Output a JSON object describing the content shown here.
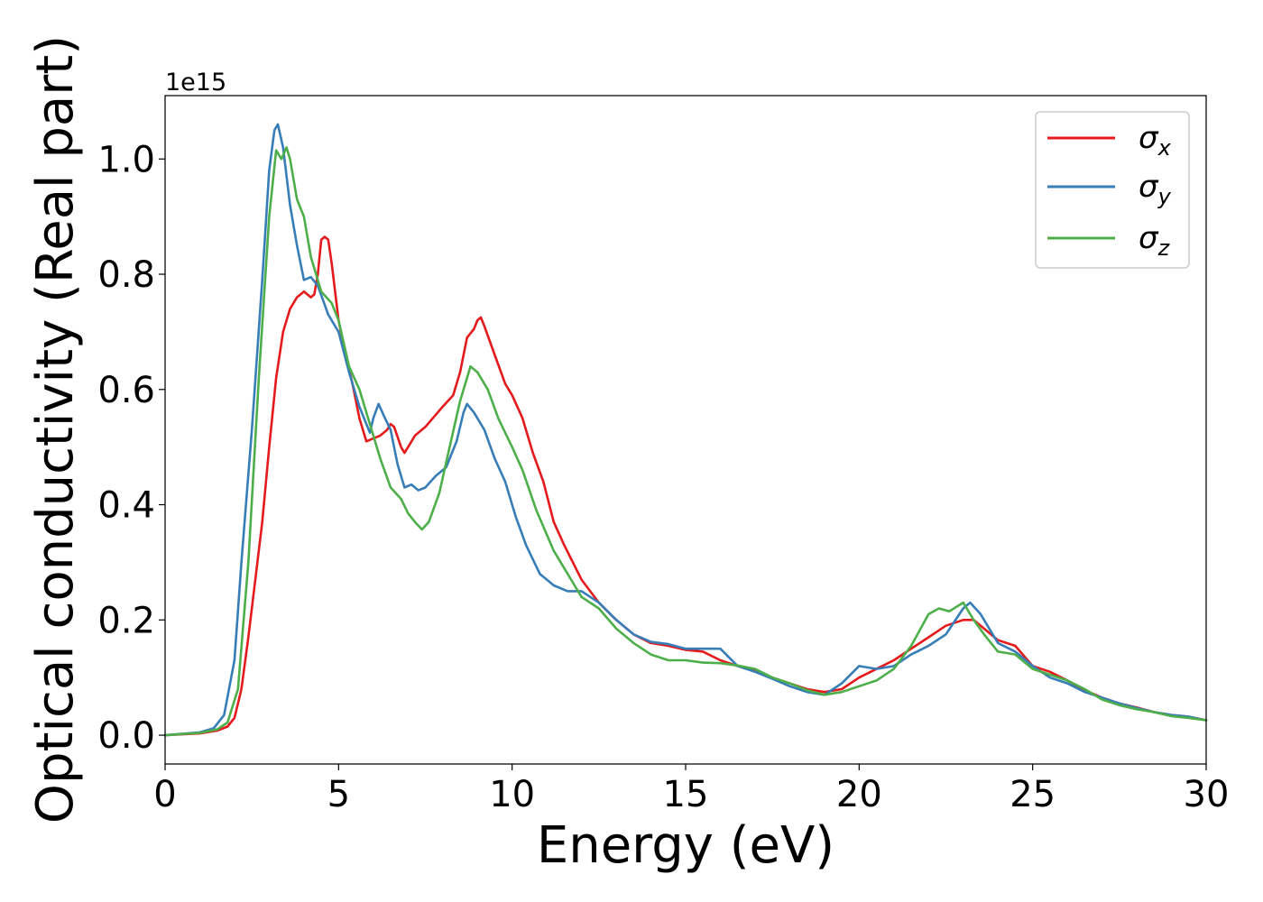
{
  "chart_data": {
    "type": "line",
    "title": "",
    "xlabel": "Energy (eV)",
    "ylabel": "Optical conductivity (Real part)",
    "y_multiplier_label": "1e15",
    "xlim": [
      0,
      30
    ],
    "ylim": [
      -0.05,
      1.11
    ],
    "xticks": [
      0,
      5,
      10,
      15,
      20,
      25,
      30
    ],
    "xtick_labels": [
      "0",
      "5",
      "10",
      "15",
      "20",
      "25",
      "30"
    ],
    "yticks": [
      0.0,
      0.2,
      0.4,
      0.6,
      0.8,
      1.0
    ],
    "ytick_labels": [
      "0.0",
      "0.2",
      "0.4",
      "0.6",
      "0.8",
      "1.0"
    ],
    "grid": false,
    "legend_position": "top-right",
    "series": [
      {
        "name": "σx",
        "legend_base": "σ",
        "legend_sub": "x",
        "color": "#e41a1c",
        "points": [
          [
            0,
            0
          ],
          [
            1,
            0.003
          ],
          [
            1.5,
            0.008
          ],
          [
            1.8,
            0.015
          ],
          [
            2.0,
            0.03
          ],
          [
            2.2,
            0.08
          ],
          [
            2.4,
            0.17
          ],
          [
            2.6,
            0.27
          ],
          [
            2.8,
            0.37
          ],
          [
            3.0,
            0.5
          ],
          [
            3.2,
            0.62
          ],
          [
            3.4,
            0.7
          ],
          [
            3.6,
            0.74
          ],
          [
            3.8,
            0.76
          ],
          [
            4.0,
            0.77
          ],
          [
            4.2,
            0.76
          ],
          [
            4.3,
            0.765
          ],
          [
            4.4,
            0.8
          ],
          [
            4.5,
            0.86
          ],
          [
            4.6,
            0.865
          ],
          [
            4.7,
            0.86
          ],
          [
            4.8,
            0.82
          ],
          [
            5.0,
            0.72
          ],
          [
            5.2,
            0.66
          ],
          [
            5.4,
            0.61
          ],
          [
            5.6,
            0.55
          ],
          [
            5.8,
            0.51
          ],
          [
            6.0,
            0.515
          ],
          [
            6.2,
            0.52
          ],
          [
            6.4,
            0.53
          ],
          [
            6.5,
            0.54
          ],
          [
            6.6,
            0.535
          ],
          [
            6.8,
            0.5
          ],
          [
            6.9,
            0.49
          ],
          [
            7.0,
            0.5
          ],
          [
            7.2,
            0.52
          ],
          [
            7.5,
            0.535
          ],
          [
            8.0,
            0.57
          ],
          [
            8.3,
            0.59
          ],
          [
            8.5,
            0.63
          ],
          [
            8.7,
            0.69
          ],
          [
            8.9,
            0.705
          ],
          [
            9.0,
            0.72
          ],
          [
            9.1,
            0.725
          ],
          [
            9.2,
            0.71
          ],
          [
            9.5,
            0.66
          ],
          [
            9.8,
            0.61
          ],
          [
            10.0,
            0.59
          ],
          [
            10.3,
            0.55
          ],
          [
            10.6,
            0.49
          ],
          [
            10.9,
            0.44
          ],
          [
            11.2,
            0.37
          ],
          [
            11.5,
            0.33
          ],
          [
            12.0,
            0.27
          ],
          [
            12.5,
            0.23
          ],
          [
            13.0,
            0.2
          ],
          [
            13.5,
            0.175
          ],
          [
            14.0,
            0.16
          ],
          [
            14.5,
            0.155
          ],
          [
            15.0,
            0.148
          ],
          [
            15.5,
            0.145
          ],
          [
            16.0,
            0.13
          ],
          [
            16.5,
            0.12
          ],
          [
            17.0,
            0.112
          ],
          [
            17.5,
            0.1
          ],
          [
            18.0,
            0.09
          ],
          [
            18.5,
            0.08
          ],
          [
            19.0,
            0.075
          ],
          [
            19.5,
            0.08
          ],
          [
            20.0,
            0.1
          ],
          [
            20.5,
            0.115
          ],
          [
            21.0,
            0.13
          ],
          [
            21.5,
            0.15
          ],
          [
            22.0,
            0.17
          ],
          [
            22.5,
            0.19
          ],
          [
            23.0,
            0.2
          ],
          [
            23.3,
            0.2
          ],
          [
            23.6,
            0.185
          ],
          [
            24.0,
            0.165
          ],
          [
            24.5,
            0.155
          ],
          [
            25.0,
            0.12
          ],
          [
            25.5,
            0.11
          ],
          [
            26.0,
            0.095
          ],
          [
            26.5,
            0.078
          ],
          [
            27.0,
            0.065
          ],
          [
            27.5,
            0.055
          ],
          [
            28.0,
            0.048
          ],
          [
            28.5,
            0.04
          ],
          [
            29.0,
            0.035
          ],
          [
            29.5,
            0.032
          ],
          [
            30.0,
            0.026
          ]
        ]
      },
      {
        "name": "σy",
        "legend_base": "σ",
        "legend_sub": "y",
        "color": "#377eb8",
        "points": [
          [
            0,
            0
          ],
          [
            1,
            0.005
          ],
          [
            1.4,
            0.012
          ],
          [
            1.7,
            0.035
          ],
          [
            2.0,
            0.13
          ],
          [
            2.2,
            0.3
          ],
          [
            2.5,
            0.53
          ],
          [
            2.8,
            0.79
          ],
          [
            3.0,
            0.98
          ],
          [
            3.15,
            1.05
          ],
          [
            3.25,
            1.06
          ],
          [
            3.4,
            1.02
          ],
          [
            3.6,
            0.92
          ],
          [
            3.8,
            0.85
          ],
          [
            4.0,
            0.79
          ],
          [
            4.2,
            0.795
          ],
          [
            4.4,
            0.78
          ],
          [
            4.7,
            0.73
          ],
          [
            5.0,
            0.7
          ],
          [
            5.3,
            0.63
          ],
          [
            5.6,
            0.57
          ],
          [
            5.9,
            0.525
          ],
          [
            6.0,
            0.55
          ],
          [
            6.15,
            0.575
          ],
          [
            6.3,
            0.555
          ],
          [
            6.5,
            0.53
          ],
          [
            6.7,
            0.47
          ],
          [
            6.9,
            0.43
          ],
          [
            7.1,
            0.435
          ],
          [
            7.3,
            0.425
          ],
          [
            7.5,
            0.43
          ],
          [
            7.8,
            0.45
          ],
          [
            8.1,
            0.465
          ],
          [
            8.4,
            0.51
          ],
          [
            8.6,
            0.56
          ],
          [
            8.7,
            0.575
          ],
          [
            8.9,
            0.56
          ],
          [
            9.2,
            0.53
          ],
          [
            9.5,
            0.48
          ],
          [
            9.8,
            0.44
          ],
          [
            10.1,
            0.38
          ],
          [
            10.4,
            0.33
          ],
          [
            10.8,
            0.28
          ],
          [
            11.2,
            0.26
          ],
          [
            11.6,
            0.25
          ],
          [
            12.0,
            0.25
          ],
          [
            12.5,
            0.23
          ],
          [
            13.0,
            0.2
          ],
          [
            13.5,
            0.175
          ],
          [
            14.0,
            0.162
          ],
          [
            14.5,
            0.158
          ],
          [
            15.0,
            0.15
          ],
          [
            15.5,
            0.15
          ],
          [
            16.0,
            0.15
          ],
          [
            16.5,
            0.12
          ],
          [
            17.0,
            0.11
          ],
          [
            17.5,
            0.098
          ],
          [
            18.0,
            0.085
          ],
          [
            18.5,
            0.075
          ],
          [
            19.0,
            0.07
          ],
          [
            19.5,
            0.09
          ],
          [
            20.0,
            0.12
          ],
          [
            20.5,
            0.115
          ],
          [
            21.0,
            0.12
          ],
          [
            21.5,
            0.14
          ],
          [
            22.0,
            0.155
          ],
          [
            22.5,
            0.175
          ],
          [
            23.0,
            0.22
          ],
          [
            23.2,
            0.23
          ],
          [
            23.5,
            0.21
          ],
          [
            24.0,
            0.16
          ],
          [
            24.5,
            0.145
          ],
          [
            25.0,
            0.12
          ],
          [
            25.5,
            0.1
          ],
          [
            26.0,
            0.09
          ],
          [
            26.5,
            0.075
          ],
          [
            27.0,
            0.065
          ],
          [
            27.5,
            0.055
          ],
          [
            28.0,
            0.047
          ],
          [
            28.5,
            0.04
          ],
          [
            29.0,
            0.035
          ],
          [
            29.5,
            0.032
          ],
          [
            30.0,
            0.026
          ]
        ]
      },
      {
        "name": "σz",
        "legend_base": "σ",
        "legend_sub": "z",
        "color": "#4daf4a",
        "points": [
          [
            0,
            0
          ],
          [
            1,
            0.004
          ],
          [
            1.5,
            0.01
          ],
          [
            1.8,
            0.022
          ],
          [
            2.1,
            0.08
          ],
          [
            2.4,
            0.3
          ],
          [
            2.7,
            0.62
          ],
          [
            3.0,
            0.9
          ],
          [
            3.2,
            1.015
          ],
          [
            3.35,
            1.0
          ],
          [
            3.5,
            1.02
          ],
          [
            3.6,
            1.0
          ],
          [
            3.8,
            0.93
          ],
          [
            4.0,
            0.9
          ],
          [
            4.2,
            0.83
          ],
          [
            4.5,
            0.77
          ],
          [
            4.8,
            0.75
          ],
          [
            5.0,
            0.72
          ],
          [
            5.3,
            0.64
          ],
          [
            5.6,
            0.6
          ],
          [
            5.9,
            0.54
          ],
          [
            6.2,
            0.48
          ],
          [
            6.5,
            0.43
          ],
          [
            6.8,
            0.41
          ],
          [
            7.0,
            0.385
          ],
          [
            7.2,
            0.37
          ],
          [
            7.4,
            0.357
          ],
          [
            7.6,
            0.37
          ],
          [
            7.9,
            0.42
          ],
          [
            8.2,
            0.5
          ],
          [
            8.5,
            0.58
          ],
          [
            8.8,
            0.64
          ],
          [
            9.0,
            0.63
          ],
          [
            9.3,
            0.6
          ],
          [
            9.6,
            0.55
          ],
          [
            10.0,
            0.5
          ],
          [
            10.3,
            0.46
          ],
          [
            10.7,
            0.39
          ],
          [
            11.2,
            0.32
          ],
          [
            11.6,
            0.28
          ],
          [
            12.0,
            0.24
          ],
          [
            12.5,
            0.22
          ],
          [
            13.0,
            0.185
          ],
          [
            13.5,
            0.16
          ],
          [
            14.0,
            0.14
          ],
          [
            14.5,
            0.13
          ],
          [
            15.0,
            0.13
          ],
          [
            15.5,
            0.126
          ],
          [
            16.0,
            0.125
          ],
          [
            16.5,
            0.121
          ],
          [
            17.0,
            0.115
          ],
          [
            17.5,
            0.1
          ],
          [
            18.0,
            0.09
          ],
          [
            18.5,
            0.078
          ],
          [
            19.0,
            0.07
          ],
          [
            19.5,
            0.075
          ],
          [
            20.0,
            0.085
          ],
          [
            20.5,
            0.095
          ],
          [
            21.0,
            0.115
          ],
          [
            21.5,
            0.155
          ],
          [
            22.0,
            0.21
          ],
          [
            22.3,
            0.22
          ],
          [
            22.6,
            0.215
          ],
          [
            23.0,
            0.23
          ],
          [
            23.3,
            0.2
          ],
          [
            23.6,
            0.175
          ],
          [
            24.0,
            0.145
          ],
          [
            24.5,
            0.14
          ],
          [
            25.0,
            0.115
          ],
          [
            25.5,
            0.105
          ],
          [
            26.0,
            0.095
          ],
          [
            26.5,
            0.08
          ],
          [
            27.0,
            0.062
          ],
          [
            27.5,
            0.052
          ],
          [
            28.0,
            0.045
          ],
          [
            28.5,
            0.04
          ],
          [
            29.0,
            0.033
          ],
          [
            29.5,
            0.03
          ],
          [
            30.0,
            0.026
          ]
        ]
      }
    ]
  }
}
